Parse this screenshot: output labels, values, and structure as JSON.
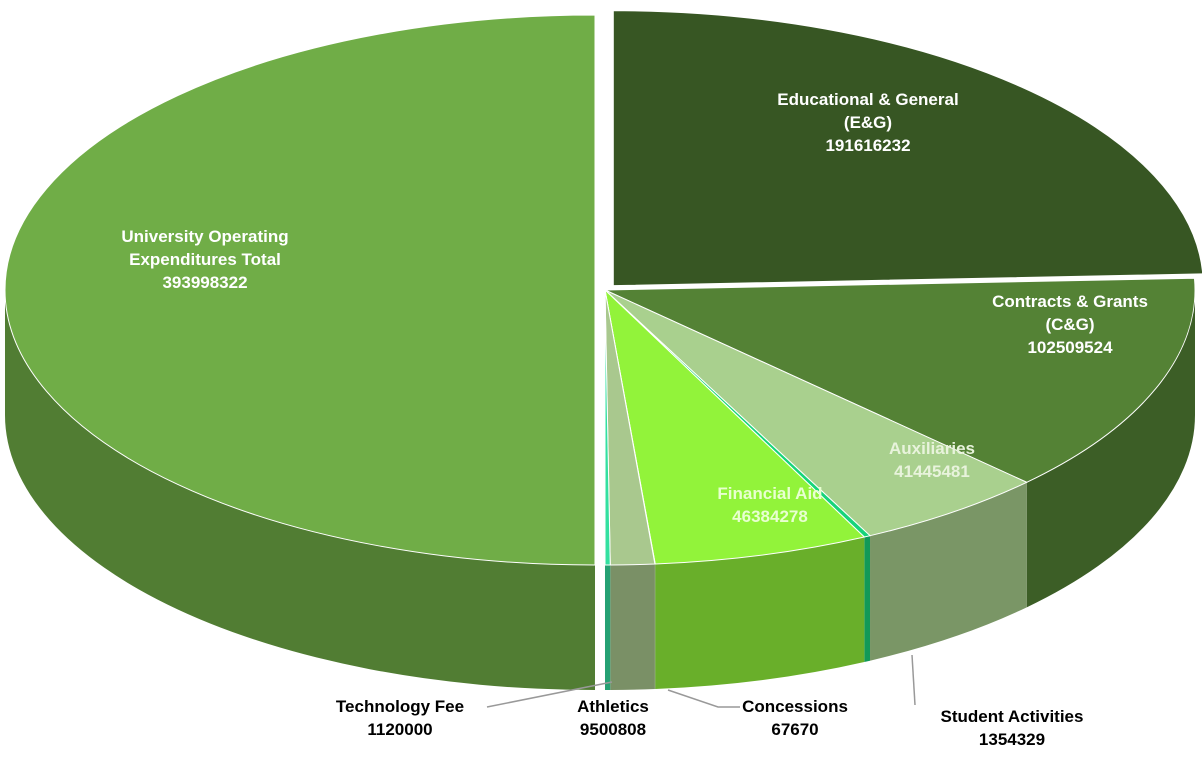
{
  "chart_data": {
    "type": "pie3d",
    "categories": [
      "Educational & General (E&G)",
      "Contracts & Grants (C&G)",
      "Auxiliaries",
      "Student Activities",
      "Financial Aid",
      "Concessions",
      "Athletics",
      "Technology Fee",
      "University Operating Expenditures Total"
    ],
    "values": [
      191616232,
      102509524,
      41445481,
      1354329,
      46384278,
      67670,
      9500808,
      1120000,
      393998322
    ],
    "colors": [
      "#375623",
      "#548235",
      "#a9d08e",
      "#17d47a",
      "#92f33a",
      "#9bc27a",
      "#a9c88e",
      "#33e0a0",
      "#70ad47"
    ]
  }
}
